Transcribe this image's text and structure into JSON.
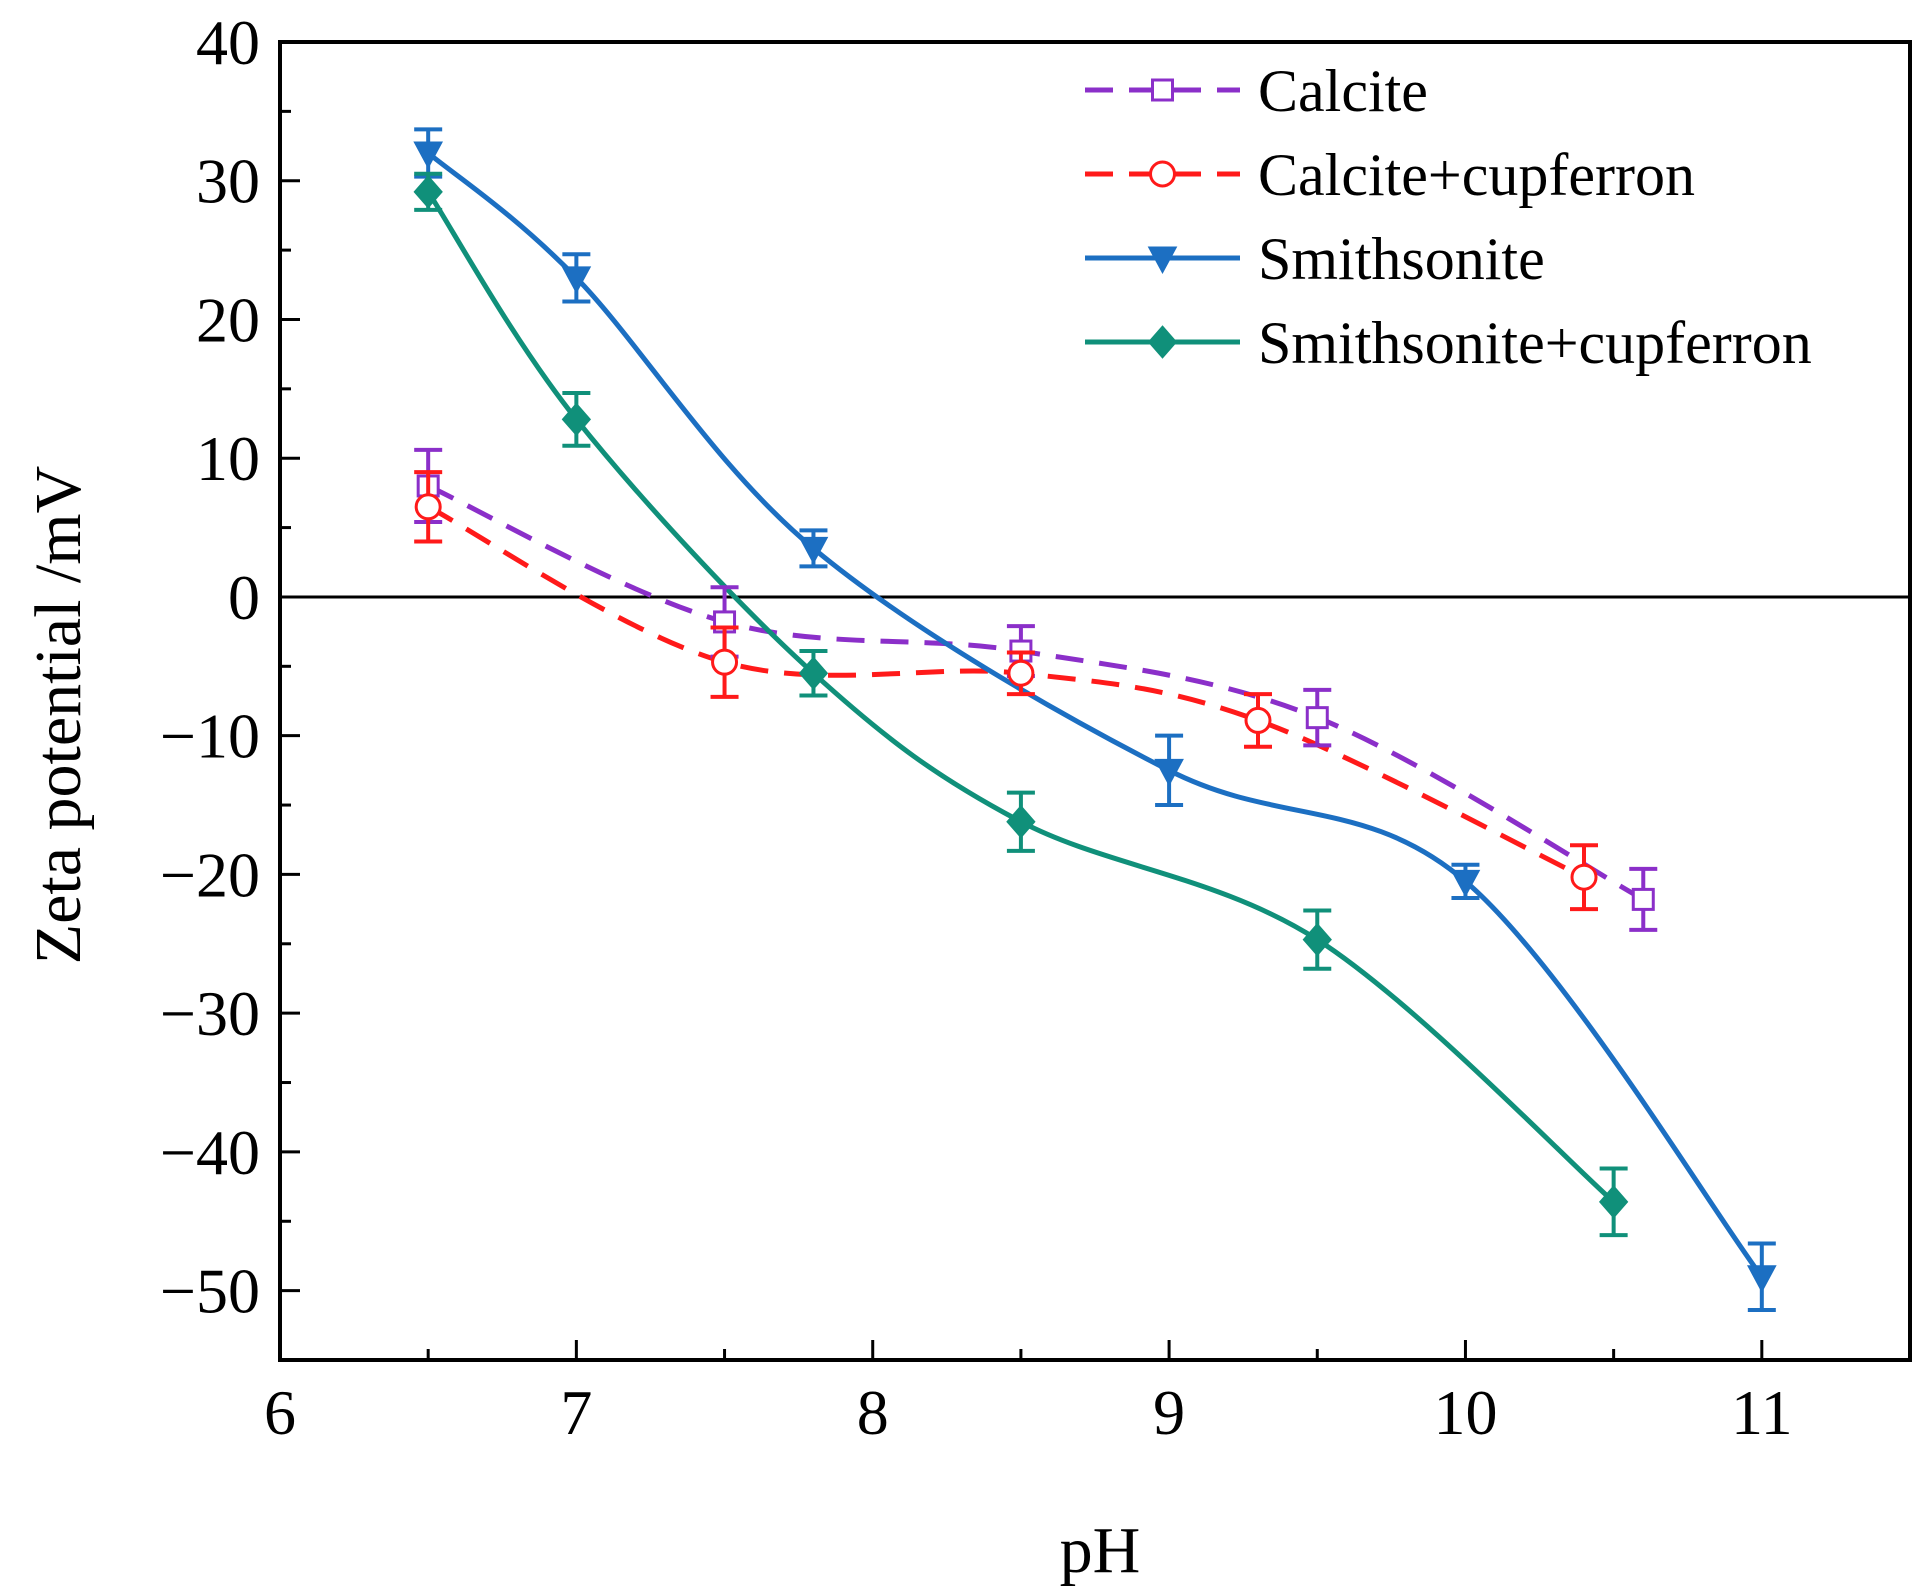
{
  "chart_data": {
    "type": "line",
    "title": "",
    "xlabel": "pH",
    "ylabel": "Zeta potential /mV",
    "xlim": [
      6,
      11.5
    ],
    "ylim": [
      -55,
      40
    ],
    "xticks": [
      6,
      7,
      8,
      9,
      10,
      11
    ],
    "yticks": [
      40,
      30,
      20,
      10,
      0,
      -10,
      -20,
      -30,
      -40,
      -50
    ],
    "xtick_labels": [
      "6",
      "7",
      "8",
      "9",
      "10",
      "11"
    ],
    "ytick_labels": [
      "40",
      "30",
      "20",
      "10",
      "0",
      "−10",
      "−20",
      "−30",
      "−40",
      "−50"
    ],
    "zero_line": true,
    "grid": false,
    "legend_position": "top-right",
    "series": [
      {
        "name": "Calcite",
        "color": "#8B2FC9",
        "line_style": "dashed",
        "marker": "open-square",
        "x": [
          6.5,
          7.5,
          8.5,
          9.5,
          10.6
        ],
        "y": [
          8.0,
          -1.8,
          -3.9,
          -8.7,
          -21.8
        ],
        "error": [
          2.6,
          2.5,
          1.8,
          2.0,
          2.2
        ]
      },
      {
        "name": "Calcite+cupferron",
        "color": "#FF1A1A",
        "line_style": "dashed",
        "marker": "open-circle",
        "x": [
          6.5,
          7.5,
          8.5,
          9.3,
          10.4
        ],
        "y": [
          6.5,
          -4.7,
          -5.5,
          -8.9,
          -20.2
        ],
        "error": [
          2.5,
          2.5,
          1.5,
          1.9,
          2.3
        ]
      },
      {
        "name": "Smithsonite",
        "color": "#1C6FC2",
        "line_style": "solid",
        "marker": "filled-down-triangle",
        "x": [
          6.5,
          7.0,
          7.8,
          9.0,
          10.0,
          11.0
        ],
        "y": [
          32.0,
          23.0,
          3.5,
          -12.5,
          -20.5,
          -49.0
        ],
        "error": [
          1.7,
          1.7,
          1.3,
          2.5,
          1.2,
          2.4
        ]
      },
      {
        "name": "Smithsonite+cupferron",
        "color": "#10907A",
        "line_style": "solid",
        "marker": "filled-diamond",
        "x": [
          6.5,
          7.0,
          7.8,
          8.5,
          9.5,
          10.5
        ],
        "y": [
          29.2,
          12.8,
          -5.5,
          -16.2,
          -24.7,
          -43.6
        ],
        "error": [
          1.3,
          1.9,
          1.6,
          2.1,
          2.1,
          2.4
        ]
      }
    ]
  }
}
